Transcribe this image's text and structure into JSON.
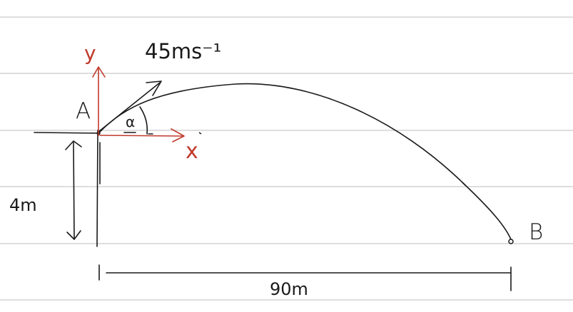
{
  "labels": {
    "velocity": "45ms⁻¹",
    "point_a": "A",
    "point_b": "B",
    "height": "4m",
    "distance": "90m",
    "axis_x": "x",
    "axis_y": "y",
    "angle": "α"
  },
  "colors": {
    "ink": "#1a1a1a",
    "axis_red": "#c0392b",
    "ruled_line": "#d3d3d3",
    "background": "#ffffff"
  }
}
